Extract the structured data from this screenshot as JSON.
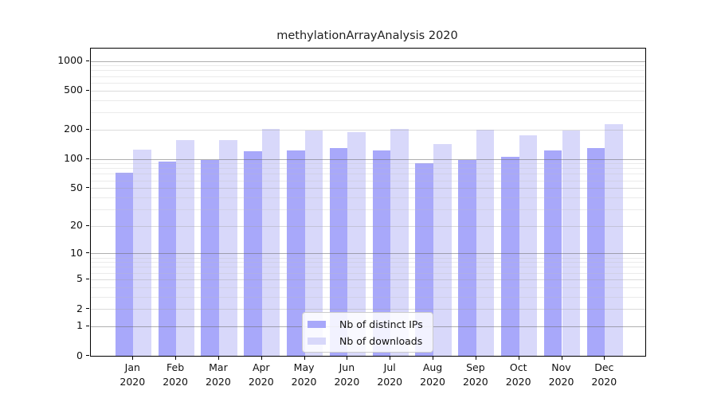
{
  "chart_data": {
    "type": "bar",
    "title": "methylationArrayAnalysis 2020",
    "scale": "log1p",
    "grid": "horizontal",
    "legend_position": "inside-bottom-center",
    "ylim": [
      0,
      1336
    ],
    "yticks": [
      0,
      1,
      2,
      5,
      10,
      20,
      50,
      100,
      200,
      500,
      1000
    ],
    "categories": [
      {
        "month": "Jan",
        "year": "2020"
      },
      {
        "month": "Feb",
        "year": "2020"
      },
      {
        "month": "Mar",
        "year": "2020"
      },
      {
        "month": "Apr",
        "year": "2020"
      },
      {
        "month": "May",
        "year": "2020"
      },
      {
        "month": "Jun",
        "year": "2020"
      },
      {
        "month": "Jul",
        "year": "2020"
      },
      {
        "month": "Aug",
        "year": "2020"
      },
      {
        "month": "Sep",
        "year": "2020"
      },
      {
        "month": "Oct",
        "year": "2020"
      },
      {
        "month": "Nov",
        "year": "2020"
      },
      {
        "month": "Dec",
        "year": "2020"
      }
    ],
    "series": [
      {
        "name": "Nb of distinct IPs",
        "color": "#a8a8fa",
        "values": [
          72,
          94,
          97,
          120,
          123,
          130,
          123,
          91,
          97,
          104,
          121,
          129
        ]
      },
      {
        "name": "Nb of downloads",
        "color": "#d8d8fa",
        "values": [
          125,
          157,
          155,
          204,
          194,
          189,
          202,
          141,
          198,
          175,
          196,
          226
        ]
      }
    ]
  }
}
